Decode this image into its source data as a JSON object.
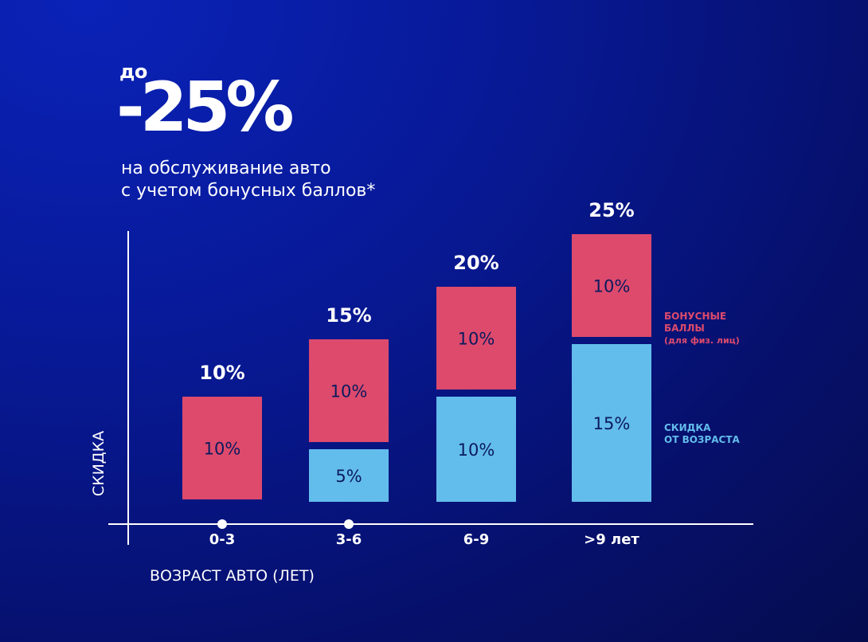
{
  "hero": {
    "prefix": "до",
    "value": "-25%",
    "subtitle_line1": "на обслуживание авто",
    "subtitle_line2": "с учетом бонусных баллов*"
  },
  "colors": {
    "bonus": "#dd4a6c",
    "age": "#63bdec",
    "axis": "#ffffff"
  },
  "chart_data": {
    "type": "bar",
    "stacked": true,
    "title": "до -25% на обслуживание авто с учетом бонусных баллов*",
    "xlabel": "ВОЗРАСТ АВТО (ЛЕТ)",
    "ylabel": "СКИДКА",
    "categories": [
      "0-3",
      "3-6",
      "6-9",
      ">9 лет"
    ],
    "series": [
      {
        "name": "СКИДКА ОТ ВОЗРАСТА",
        "values": [
          0,
          5,
          10,
          15
        ],
        "labels": [
          "",
          "5%",
          "10%",
          "15%"
        ]
      },
      {
        "name": "БОНУСНЫЕ БАЛЛЫ (для физ. лиц)",
        "values": [
          10,
          10,
          10,
          10
        ],
        "labels": [
          "10%",
          "10%",
          "10%",
          "10%"
        ]
      }
    ],
    "totals": [
      "10%",
      "15%",
      "20%",
      "25%"
    ],
    "legend": [
      {
        "lines": [
          "БОНУСНЫЕ",
          "БАЛЛЫ",
          "(для физ. лиц)"
        ],
        "series": 1
      },
      {
        "lines": [
          "СКИДКА",
          "ОТ ВОЗРАСТА"
        ],
        "series": 0
      }
    ],
    "legend_position": "right"
  }
}
